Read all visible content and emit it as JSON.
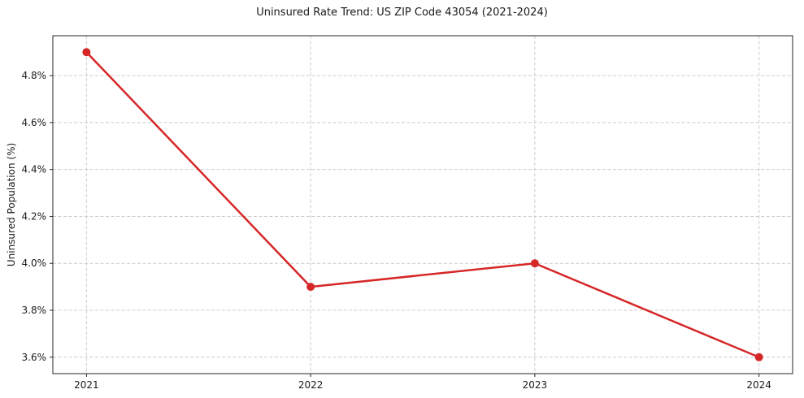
{
  "chart_data": {
    "type": "line",
    "title": "Uninsured Rate Trend: US ZIP Code 43054 (2021-2024)",
    "xlabel": "",
    "ylabel": "Uninsured Population (%)",
    "categories": [
      "2021",
      "2022",
      "2023",
      "2024"
    ],
    "values": [
      4.9,
      3.9,
      4.0,
      3.6
    ],
    "ytick_values": [
      3.6,
      3.8,
      4.0,
      4.2,
      4.4,
      4.6,
      4.8
    ],
    "ytick_labels": [
      "3.6%",
      "3.8%",
      "4.0%",
      "4.2%",
      "4.4%",
      "4.6%",
      "4.8%"
    ],
    "ylim": [
      3.53,
      4.97
    ],
    "x_margin_frac": 0.05,
    "grid": true,
    "grid_style": "dashed",
    "legend_position": "none",
    "line_color": "#d62728",
    "marker": "circle",
    "grid_color": "#cccccc",
    "axis_color": "#262626",
    "text_color": "#1a1a1a",
    "background_color": "#ffffff"
  }
}
